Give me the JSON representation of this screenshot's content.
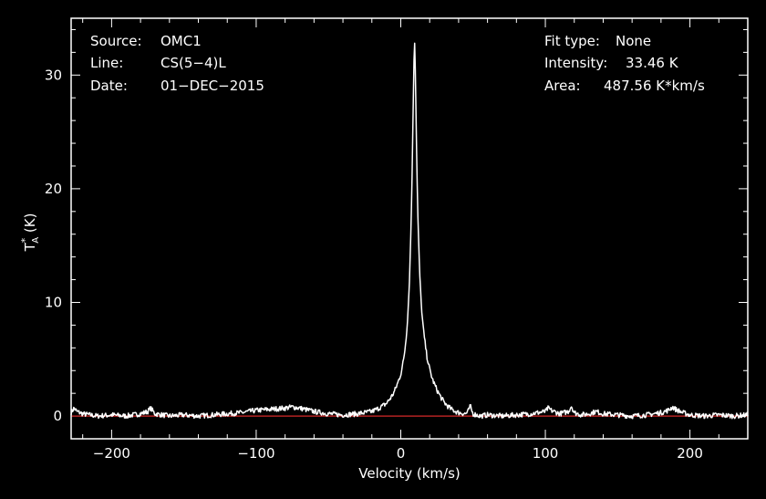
{
  "info": {
    "source_label": "Source:",
    "source_value": "OMC1",
    "line_label": "Line:",
    "line_value": "CS(5−4)L",
    "date_label": "Date:",
    "date_value": "01−DEC−2015",
    "fit_label": "Fit type:",
    "fit_value": "None",
    "intensity_label": "Intensity:",
    "intensity_value": "33.46 K",
    "area_label": "Area:",
    "area_value": "487.56 K*km/s"
  },
  "colors": {
    "background": "#000000",
    "trace": "#ffffff",
    "baseline": "#b22222",
    "frame": "#ffffff"
  },
  "chart_data": {
    "type": "line",
    "xlabel": "Velocity (km/s)",
    "ylabel": "T*A (K)",
    "xlim": [
      -228,
      240
    ],
    "ylim": [
      -2,
      35
    ],
    "x_ticks": [
      -200,
      -100,
      0,
      100,
      200
    ],
    "x_tick_labels": [
      "−200",
      "−100",
      "0",
      "100",
      "200"
    ],
    "y_ticks": [
      0,
      10,
      20,
      30
    ],
    "y_tick_labels": [
      "0",
      "10",
      "20",
      "30"
    ],
    "baseline": 0,
    "series": [
      {
        "x": [
          -228,
          -226,
          -224,
          -220,
          -215,
          -210,
          -200,
          -190,
          -180,
          -175,
          -173,
          -170,
          -160,
          -150,
          -140,
          -130,
          -120,
          -110,
          -100,
          -90,
          -80,
          -75,
          -70,
          -60,
          -50,
          -40,
          -30,
          -20,
          -15,
          -10,
          -7,
          -5,
          -3,
          -1,
          0,
          1,
          2,
          3,
          4,
          5,
          5.5,
          6,
          6.5,
          7,
          7.5,
          8,
          8.5,
          9,
          9.5,
          10,
          10.5,
          11,
          11.5,
          12,
          13,
          14,
          15,
          16,
          18,
          20,
          22,
          25,
          28,
          30,
          33,
          35,
          38,
          40,
          45,
          47,
          48,
          49,
          50,
          55,
          60,
          70,
          80,
          90,
          100,
          102,
          104,
          110,
          116,
          118,
          120,
          125,
          130,
          135,
          140,
          150,
          160,
          170,
          180,
          185,
          188,
          190,
          195,
          200,
          210,
          220,
          230,
          240
        ],
        "y": [
          0.3,
          0.7,
          0.4,
          0.2,
          0.1,
          0.0,
          0.1,
          0.0,
          0.2,
          0.4,
          0.7,
          0.2,
          0.0,
          0.1,
          0.0,
          0.1,
          0.2,
          0.3,
          0.5,
          0.6,
          0.7,
          0.8,
          0.7,
          0.4,
          0.2,
          0.1,
          0.2,
          0.4,
          0.7,
          1.1,
          1.6,
          2.0,
          2.6,
          3.3,
          3.7,
          4.3,
          5.0,
          6.0,
          7.3,
          9.2,
          10.5,
          12.0,
          14.0,
          16.3,
          19.0,
          22.5,
          26.5,
          30.5,
          33.4,
          31.0,
          27.0,
          23.0,
          19.5,
          16.7,
          12.8,
          10.2,
          8.5,
          7.2,
          5.3,
          4.1,
          3.2,
          2.3,
          1.6,
          1.2,
          0.8,
          0.6,
          0.4,
          0.3,
          0.2,
          0.5,
          0.9,
          0.5,
          0.2,
          0.0,
          0.1,
          0.0,
          0.1,
          0.2,
          0.4,
          0.7,
          0.5,
          0.2,
          0.4,
          0.9,
          0.3,
          0.1,
          0.2,
          0.4,
          0.2,
          0.1,
          0.0,
          0.1,
          0.3,
          0.5,
          0.8,
          0.6,
          0.3,
          0.1,
          0.0,
          0.1,
          0.0,
          0.1
        ]
      }
    ]
  }
}
